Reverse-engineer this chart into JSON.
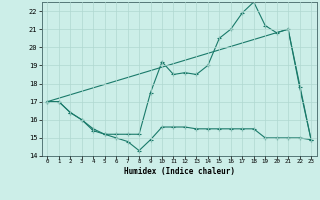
{
  "xlabel": "Humidex (Indice chaleur)",
  "background_color": "#cceee8",
  "grid_color": "#b0d8d0",
  "line_color": "#1a7a6a",
  "xlim": [
    -0.5,
    23.5
  ],
  "ylim": [
    14,
    22.5
  ],
  "yticks": [
    14,
    15,
    16,
    17,
    18,
    19,
    20,
    21,
    22
  ],
  "xticks": [
    0,
    1,
    2,
    3,
    4,
    5,
    6,
    7,
    8,
    9,
    10,
    11,
    12,
    13,
    14,
    15,
    16,
    17,
    18,
    19,
    20,
    21,
    22,
    23
  ],
  "line1_x": [
    0,
    1,
    2,
    3,
    4,
    5,
    6,
    7,
    8,
    9,
    10,
    11,
    12,
    13,
    14,
    15,
    16,
    17,
    18,
    19,
    20,
    21,
    22,
    23
  ],
  "line1_y": [
    17.0,
    17.0,
    16.4,
    16.0,
    15.4,
    15.2,
    15.0,
    14.8,
    14.3,
    14.9,
    15.6,
    15.6,
    15.6,
    15.5,
    15.5,
    15.5,
    15.5,
    15.5,
    15.5,
    15.0,
    15.0,
    15.0,
    15.0,
    14.9
  ],
  "line2_x": [
    0,
    1,
    2,
    3,
    4,
    5,
    6,
    7,
    8,
    9,
    10,
    11,
    12,
    13,
    14,
    15,
    16,
    17,
    18,
    19,
    20,
    21,
    22,
    23
  ],
  "line2_y": [
    17.0,
    17.0,
    16.4,
    16.0,
    15.5,
    15.2,
    15.2,
    15.2,
    15.2,
    17.5,
    19.2,
    18.5,
    18.6,
    18.5,
    19.0,
    20.5,
    21.0,
    21.9,
    22.5,
    21.2,
    20.8,
    21.0,
    17.8,
    14.9
  ],
  "line3_x": [
    0,
    21,
    23
  ],
  "line3_y": [
    17.0,
    21.0,
    14.9
  ]
}
